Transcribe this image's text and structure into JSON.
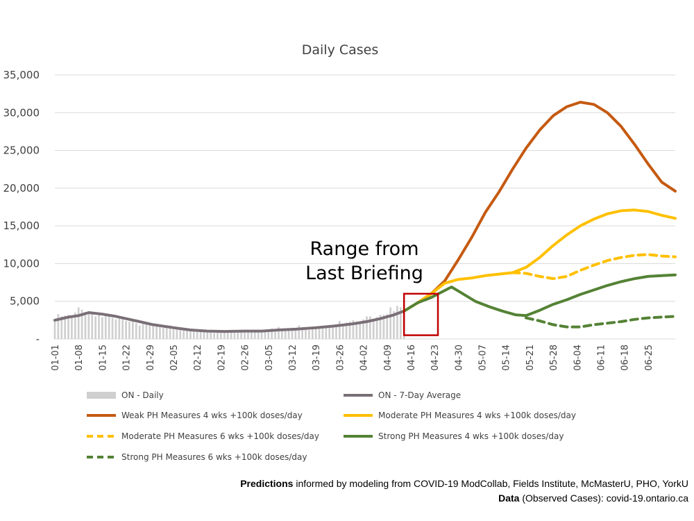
{
  "chart_data": {
    "type": "line",
    "title": "Daily Cases",
    "ylim": [
      0,
      35000
    ],
    "yticks": [
      0,
      5000,
      10000,
      15000,
      20000,
      25000,
      30000,
      35000
    ],
    "ytick_labels": [
      "-",
      "5,000",
      "10,000",
      "15,000",
      "20,000",
      "25,000",
      "30,000",
      "35,000"
    ],
    "x_range": [
      "01-01",
      "07-03"
    ],
    "xtick_labels": [
      "01-01",
      "01-08",
      "01-15",
      "01-22",
      "01-29",
      "02-05",
      "02-12",
      "02-19",
      "02-26",
      "03-05",
      "03-12",
      "03-19",
      "03-26",
      "04-02",
      "04-09",
      "04-16",
      "04-23",
      "04-30",
      "05-07",
      "05-14",
      "05-21",
      "05-28",
      "06-04",
      "06-11",
      "06-18",
      "06-25"
    ],
    "grid": "horizontal",
    "legend_position": "bottom",
    "annotation": {
      "text_line1": "Range from",
      "text_line2": "Last Briefing",
      "box_x": [
        "04-14",
        "04-24"
      ],
      "box_y": [
        500,
        6000
      ]
    },
    "daily": {
      "name": "ON - Daily",
      "color": "#d0cfcf",
      "points": [
        [
          "01-01",
          2500
        ],
        [
          "01-02",
          3300
        ],
        [
          "01-03",
          3000
        ],
        [
          "01-04",
          3100
        ],
        [
          "01-05",
          3200
        ],
        [
          "01-06",
          3100
        ],
        [
          "01-07",
          3500
        ],
        [
          "01-08",
          4200
        ],
        [
          "01-09",
          3900
        ],
        [
          "01-10",
          3600
        ],
        [
          "01-11",
          3400
        ],
        [
          "01-12",
          3300
        ],
        [
          "01-13",
          3000
        ],
        [
          "01-14",
          3300
        ],
        [
          "01-15",
          2900
        ],
        [
          "01-16",
          3100
        ],
        [
          "01-17",
          3100
        ],
        [
          "01-18",
          2800
        ],
        [
          "01-19",
          2600
        ],
        [
          "01-20",
          2700
        ],
        [
          "01-21",
          2900
        ],
        [
          "01-22",
          2400
        ],
        [
          "01-23",
          2300
        ],
        [
          "01-24",
          2600
        ],
        [
          "01-25",
          2100
        ],
        [
          "01-26",
          1800
        ],
        [
          "01-27",
          2000
        ],
        [
          "01-28",
          2200
        ],
        [
          "01-29",
          1900
        ],
        [
          "01-30",
          2000
        ],
        [
          "01-31",
          1700
        ],
        [
          "02-01",
          1600
        ],
        [
          "02-02",
          1500
        ],
        [
          "02-03",
          1600
        ],
        [
          "02-04",
          1800
        ],
        [
          "02-05",
          1400
        ],
        [
          "02-06",
          1300
        ],
        [
          "02-07",
          1400
        ],
        [
          "02-08",
          1200
        ],
        [
          "02-09",
          1100
        ],
        [
          "02-10",
          1000
        ],
        [
          "02-11",
          1000
        ],
        [
          "02-12",
          1100
        ],
        [
          "02-13",
          1000
        ],
        [
          "02-14",
          1000
        ],
        [
          "02-15",
          1100
        ],
        [
          "02-16",
          900
        ],
        [
          "02-17",
          800
        ],
        [
          "02-18",
          1000
        ],
        [
          "02-19",
          900
        ],
        [
          "02-20",
          1100
        ],
        [
          "02-21",
          1000
        ],
        [
          "02-22",
          1000
        ],
        [
          "02-23",
          900
        ],
        [
          "02-24",
          1100
        ],
        [
          "02-25",
          1100
        ],
        [
          "02-26",
          1200
        ],
        [
          "02-27",
          1200
        ],
        [
          "02-28",
          1100
        ],
        [
          "03-01",
          1000
        ],
        [
          "03-02",
          1100
        ],
        [
          "03-03",
          1000
        ],
        [
          "03-04",
          1100
        ],
        [
          "03-05",
          900
        ],
        [
          "03-06",
          1400
        ],
        [
          "03-07",
          1300
        ],
        [
          "03-08",
          1600
        ],
        [
          "03-09",
          1200
        ],
        [
          "03-10",
          1300
        ],
        [
          "03-11",
          1200
        ],
        [
          "03-12",
          1500
        ],
        [
          "03-13",
          1300
        ],
        [
          "03-14",
          1800
        ],
        [
          "03-15",
          1400
        ],
        [
          "03-16",
          1200
        ],
        [
          "03-17",
          1200
        ],
        [
          "03-18",
          1400
        ],
        [
          "03-19",
          1600
        ],
        [
          "03-20",
          1700
        ],
        [
          "03-21",
          1400
        ],
        [
          "03-22",
          1500
        ],
        [
          "03-23",
          1600
        ],
        [
          "03-24",
          1700
        ],
        [
          "03-25",
          1800
        ],
        [
          "03-26",
          2400
        ],
        [
          "03-27",
          2000
        ],
        [
          "03-28",
          2200
        ],
        [
          "03-29",
          2300
        ],
        [
          "03-30",
          2500
        ],
        [
          "03-31",
          2300
        ],
        [
          "04-01",
          2300
        ],
        [
          "04-02",
          2600
        ],
        [
          "04-03",
          3000
        ],
        [
          "04-04",
          3000
        ],
        [
          "04-05",
          2600
        ],
        [
          "04-06",
          2900
        ],
        [
          "04-07",
          3200
        ],
        [
          "04-08",
          3200
        ],
        [
          "04-09",
          3300
        ],
        [
          "04-10",
          4200
        ],
        [
          "04-11",
          3700
        ],
        [
          "04-12",
          4400
        ],
        [
          "04-13",
          4200
        ],
        [
          "04-14",
          4400
        ]
      ]
    },
    "series": [
      {
        "name": "ON - 7-Day Average",
        "color": "#7a6f76",
        "dash": "solid",
        "points": [
          [
            "01-01",
            2500
          ],
          [
            "01-05",
            2900
          ],
          [
            "01-08",
            3100
          ],
          [
            "01-11",
            3500
          ],
          [
            "01-15",
            3300
          ],
          [
            "01-19",
            3000
          ],
          [
            "01-22",
            2700
          ],
          [
            "01-26",
            2300
          ],
          [
            "01-30",
            1900
          ],
          [
            "02-05",
            1500
          ],
          [
            "02-10",
            1200
          ],
          [
            "02-15",
            1050
          ],
          [
            "02-20",
            1000
          ],
          [
            "02-26",
            1050
          ],
          [
            "03-03",
            1050
          ],
          [
            "03-08",
            1200
          ],
          [
            "03-13",
            1300
          ],
          [
            "03-19",
            1500
          ],
          [
            "03-24",
            1700
          ],
          [
            "03-29",
            1950
          ],
          [
            "04-03",
            2300
          ],
          [
            "04-07",
            2700
          ],
          [
            "04-11",
            3200
          ],
          [
            "04-14",
            3700
          ]
        ]
      },
      {
        "name": "Weak PH Measures 4 wks +100k doses/day",
        "color": "#c55a11",
        "dash": "solid",
        "points": [
          [
            "04-14",
            3700
          ],
          [
            "04-18",
            4800
          ],
          [
            "04-22",
            6000
          ],
          [
            "04-26",
            7700
          ],
          [
            "04-30",
            10500
          ],
          [
            "05-04",
            13500
          ],
          [
            "05-08",
            16800
          ],
          [
            "05-12",
            19500
          ],
          [
            "05-16",
            22500
          ],
          [
            "05-20",
            25300
          ],
          [
            "05-24",
            27700
          ],
          [
            "05-28",
            29600
          ],
          [
            "06-01",
            30800
          ],
          [
            "06-05",
            31400
          ],
          [
            "06-09",
            31100
          ],
          [
            "06-13",
            30000
          ],
          [
            "06-17",
            28200
          ],
          [
            "06-21",
            25800
          ],
          [
            "06-25",
            23200
          ],
          [
            "06-29",
            20800
          ],
          [
            "07-03",
            19600
          ]
        ]
      },
      {
        "name": "Moderate PH Measures 4 wks +100k doses/day",
        "color": "#ffc000",
        "dash": "solid",
        "points": [
          [
            "04-14",
            3700
          ],
          [
            "04-18",
            4800
          ],
          [
            "04-22",
            6000
          ],
          [
            "04-26",
            7400
          ],
          [
            "04-30",
            7900
          ],
          [
            "05-04",
            8100
          ],
          [
            "05-08",
            8400
          ],
          [
            "05-12",
            8600
          ],
          [
            "05-16",
            8800
          ],
          [
            "05-20",
            9500
          ],
          [
            "05-24",
            10800
          ],
          [
            "05-28",
            12400
          ],
          [
            "06-01",
            13800
          ],
          [
            "06-05",
            15000
          ],
          [
            "06-09",
            15900
          ],
          [
            "06-13",
            16600
          ],
          [
            "06-17",
            17000
          ],
          [
            "06-21",
            17100
          ],
          [
            "06-25",
            16900
          ],
          [
            "06-29",
            16400
          ],
          [
            "07-03",
            16000
          ]
        ]
      },
      {
        "name": "Moderate PH Measures 6 wks +100k doses/day",
        "color": "#ffc000",
        "dash": "dashed",
        "points": [
          [
            "05-16",
            8800
          ],
          [
            "05-20",
            8700
          ],
          [
            "05-24",
            8300
          ],
          [
            "05-28",
            8000
          ],
          [
            "06-01",
            8300
          ],
          [
            "06-05",
            9100
          ],
          [
            "06-09",
            9800
          ],
          [
            "06-13",
            10400
          ],
          [
            "06-17",
            10800
          ],
          [
            "06-21",
            11100
          ],
          [
            "06-25",
            11200
          ],
          [
            "06-29",
            11000
          ],
          [
            "07-03",
            10900
          ]
        ]
      },
      {
        "name": "Strong PH Measures 4 wks +100k doses/day",
        "color": "#548235",
        "dash": "solid",
        "points": [
          [
            "04-14",
            3700
          ],
          [
            "04-18",
            4800
          ],
          [
            "04-22",
            5500
          ],
          [
            "04-25",
            6200
          ],
          [
            "04-28",
            6900
          ],
          [
            "05-01",
            6100
          ],
          [
            "05-05",
            5000
          ],
          [
            "05-09",
            4300
          ],
          [
            "05-13",
            3700
          ],
          [
            "05-17",
            3200
          ],
          [
            "05-20",
            3100
          ],
          [
            "05-24",
            3800
          ],
          [
            "05-28",
            4600
          ],
          [
            "06-01",
            5200
          ],
          [
            "06-05",
            5900
          ],
          [
            "06-09",
            6500
          ],
          [
            "06-13",
            7100
          ],
          [
            "06-17",
            7600
          ],
          [
            "06-21",
            8000
          ],
          [
            "06-25",
            8300
          ],
          [
            "06-29",
            8400
          ],
          [
            "07-03",
            8500
          ]
        ]
      },
      {
        "name": "Strong PH Measures 6 wks +100k doses/day",
        "color": "#548235",
        "dash": "dashed",
        "points": [
          [
            "05-20",
            2800
          ],
          [
            "05-24",
            2400
          ],
          [
            "05-28",
            1900
          ],
          [
            "06-01",
            1600
          ],
          [
            "06-05",
            1600
          ],
          [
            "06-09",
            1900
          ],
          [
            "06-13",
            2100
          ],
          [
            "06-17",
            2300
          ],
          [
            "06-21",
            2600
          ],
          [
            "06-25",
            2800
          ],
          [
            "06-29",
            2900
          ],
          [
            "07-03",
            3000
          ]
        ]
      }
    ]
  },
  "footer": {
    "line1_bold": "Predictions",
    "line1_rest": " informed by modeling from COVID-19 ModCollab, Fields Institute, McMasterU, PHO, YorkU",
    "line2_bold": "Data",
    "line2_rest": " (Observed Cases): covid-19.ontario.ca"
  }
}
